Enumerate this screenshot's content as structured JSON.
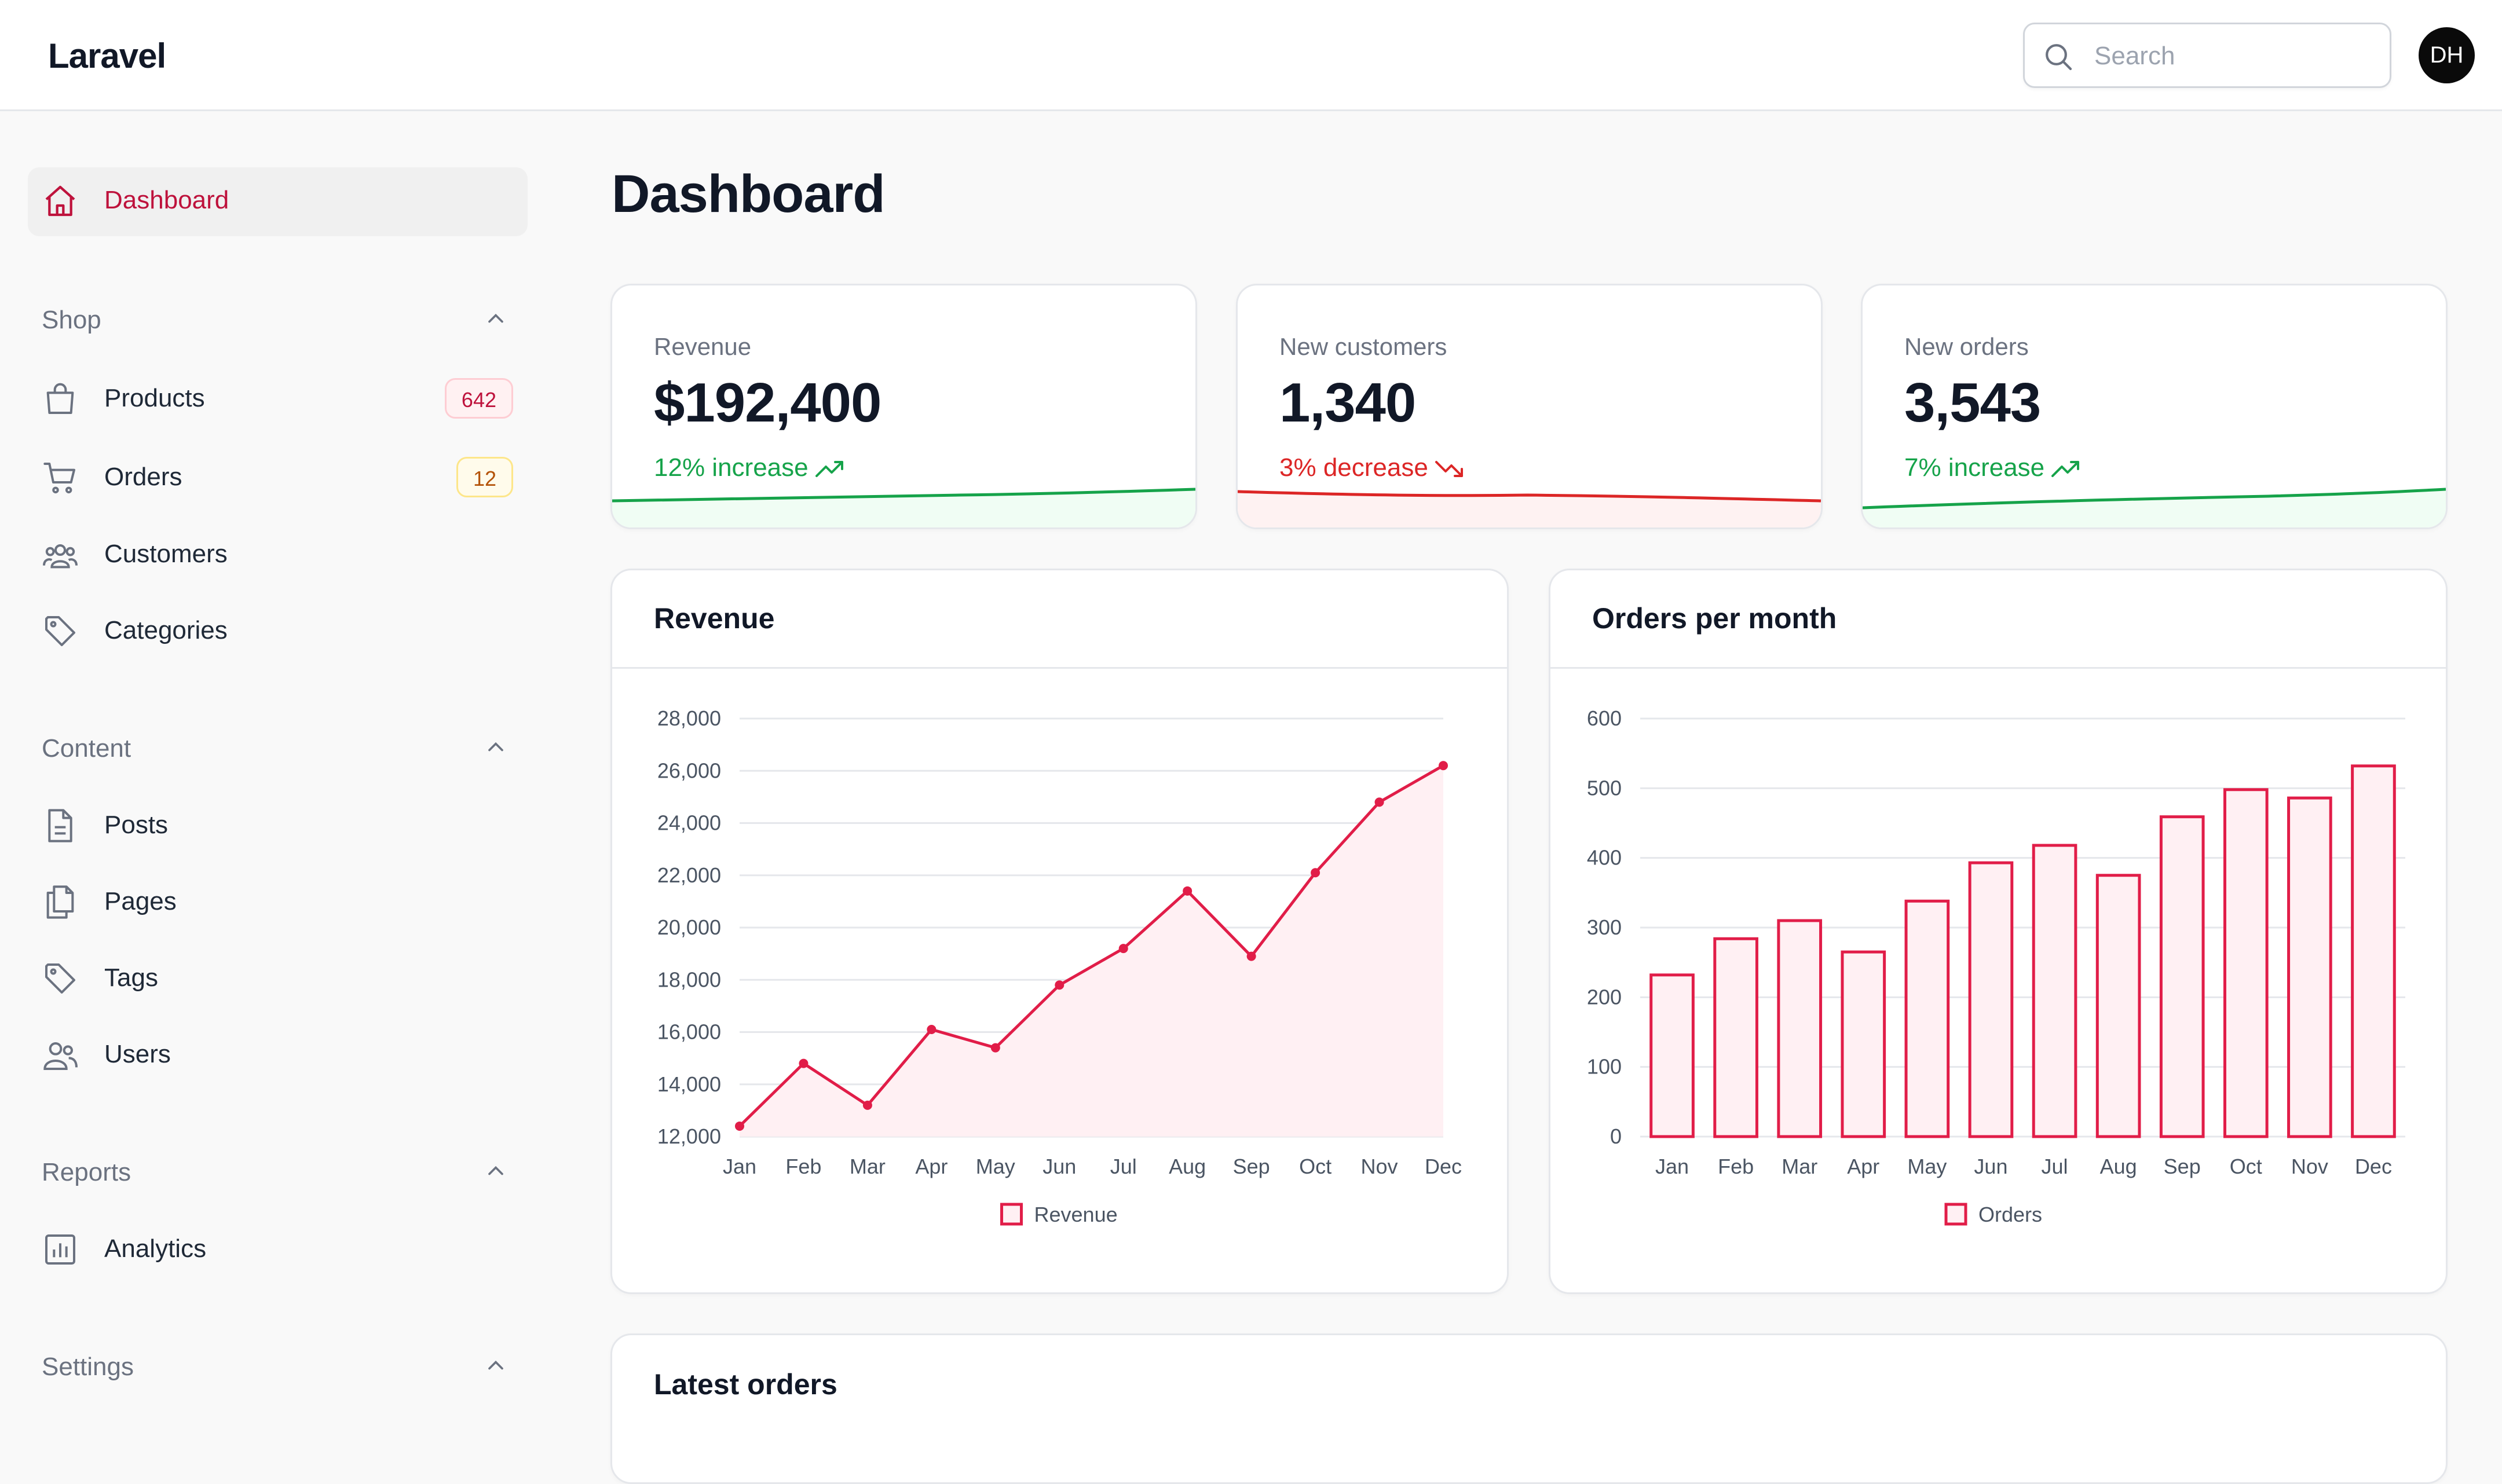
{
  "app": {
    "brand": "Laravel"
  },
  "search": {
    "placeholder": "Search"
  },
  "user": {
    "initials": "DH"
  },
  "sidebar": {
    "dashboard": {
      "label": "Dashboard",
      "icon": "home-icon"
    },
    "groups": [
      {
        "label": "Shop",
        "items": [
          {
            "label": "Products",
            "icon": "shopping-bag-icon",
            "badge": "642",
            "badge_color": "#be123c"
          },
          {
            "label": "Orders",
            "icon": "shopping-cart-icon",
            "badge": "12",
            "badge_color": "#b45309"
          },
          {
            "label": "Customers",
            "icon": "users-group-icon"
          },
          {
            "label": "Categories",
            "icon": "tag-icon"
          }
        ]
      },
      {
        "label": "Content",
        "items": [
          {
            "label": "Posts",
            "icon": "document-icon"
          },
          {
            "label": "Pages",
            "icon": "documents-icon"
          },
          {
            "label": "Tags",
            "icon": "tag-icon"
          },
          {
            "label": "Users",
            "icon": "users-icon"
          }
        ]
      },
      {
        "label": "Reports",
        "items": [
          {
            "label": "Analytics",
            "icon": "chart-icon"
          }
        ]
      },
      {
        "label": "Settings",
        "items": []
      }
    ]
  },
  "main": {
    "title": "Dashboard",
    "stats": [
      {
        "label": "Revenue",
        "value": "$192,400",
        "trend": "12% increase",
        "direction": "up",
        "color": "#16a34a"
      },
      {
        "label": "New customers",
        "value": "1,340",
        "trend": "3% decrease",
        "direction": "down",
        "color": "#dc2626"
      },
      {
        "label": "New orders",
        "value": "3,543",
        "trend": "7% increase",
        "direction": "up",
        "color": "#16a34a"
      }
    ],
    "latest_orders_title": "Latest orders"
  },
  "chart_data": [
    {
      "type": "area",
      "title": "Revenue",
      "categories": [
        "Jan",
        "Feb",
        "Mar",
        "Apr",
        "May",
        "Jun",
        "Jul",
        "Aug",
        "Sep",
        "Oct",
        "Nov",
        "Dec"
      ],
      "series": [
        {
          "name": "Revenue",
          "values": [
            12400,
            14800,
            13200,
            16100,
            15400,
            17800,
            19200,
            21400,
            18900,
            22100,
            24800,
            26200
          ]
        }
      ],
      "yticks": [
        "12,000",
        "14,000",
        "16,000",
        "18,000",
        "20,000",
        "22,000",
        "24,000",
        "26,000",
        "28,000"
      ],
      "ylim": [
        12000,
        28000
      ],
      "color": "#e11d48",
      "grid": true,
      "legend": "bottom"
    },
    {
      "type": "bar",
      "title": "Orders per month",
      "categories": [
        "Jan",
        "Feb",
        "Mar",
        "Apr",
        "May",
        "Jun",
        "Jul",
        "Aug",
        "Sep",
        "Oct",
        "Nov",
        "Dec"
      ],
      "series": [
        {
          "name": "Orders",
          "values": [
            232,
            284,
            310,
            265,
            338,
            393,
            418,
            375,
            459,
            498,
            486,
            532
          ]
        }
      ],
      "yticks": [
        "0",
        "100",
        "200",
        "300",
        "400",
        "500",
        "600"
      ],
      "ylim": [
        0,
        600
      ],
      "color": "#e11d48",
      "grid": true,
      "legend": "bottom"
    }
  ]
}
